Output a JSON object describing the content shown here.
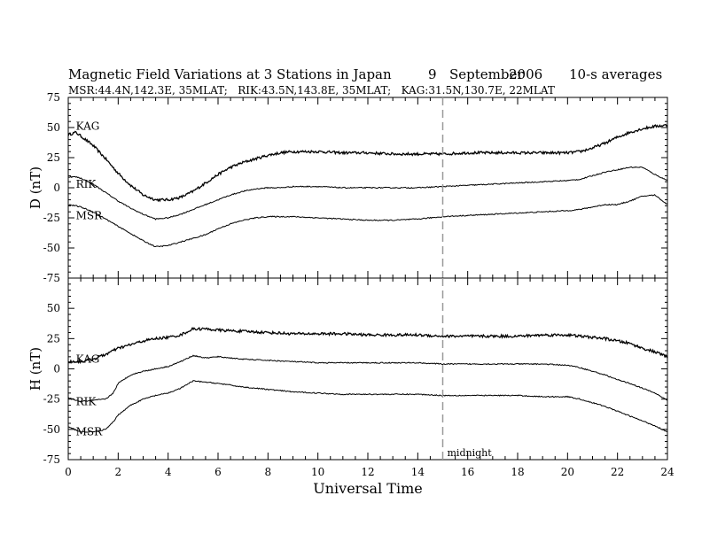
{
  "header": {
    "title": "Magnetic Field Variations at 3 Stations in Japan",
    "day": "9",
    "month": "September",
    "year": "2006",
    "avg": "10-s averages",
    "stations": "MSR:44.4N,142.3E, 35MLAT;   RIK:43.5N,143.8E, 35MLAT;   KAG:31.5N,130.7E, 22MLAT"
  },
  "chart_data": [
    {
      "type": "line",
      "ylabel": "D (nT)",
      "xlim": [
        0,
        24
      ],
      "ylim": [
        -75,
        75
      ],
      "yticks": [
        75,
        50,
        25,
        0,
        -25,
        -50,
        -75
      ],
      "series": [
        {
          "name": "KAG",
          "x": [
            0,
            0.3,
            0.5,
            1,
            1.5,
            2,
            2.5,
            3,
            3.5,
            4,
            4.5,
            5,
            5.5,
            6,
            6.5,
            7,
            7.5,
            8,
            8.5,
            9,
            10,
            11,
            12,
            13,
            14,
            15,
            16,
            17,
            18,
            19,
            20,
            20.5,
            21,
            21.5,
            22,
            22.5,
            23,
            23.5,
            24
          ],
          "y": [
            44,
            46,
            43,
            35,
            24,
            12,
            2,
            -6,
            -10,
            -10,
            -8,
            -3,
            4,
            11,
            17,
            21,
            24,
            27,
            29,
            30,
            30,
            29,
            29,
            28,
            28,
            28,
            29,
            29,
            29,
            29,
            29,
            30,
            33,
            37,
            42,
            46,
            49,
            51,
            52
          ]
        },
        {
          "name": "RIK",
          "x": [
            0,
            0.3,
            0.5,
            1,
            1.5,
            2,
            2.5,
            3,
            3.5,
            4,
            4.5,
            5,
            5.5,
            6,
            6.5,
            7,
            7.5,
            8,
            8.5,
            9,
            10,
            11,
            12,
            13,
            14,
            15,
            16,
            17,
            18,
            19,
            20,
            20.5,
            21,
            21.5,
            22,
            22.5,
            23,
            23.5,
            24
          ],
          "y": [
            9,
            9,
            8,
            3,
            -4,
            -11,
            -17,
            -22,
            -26,
            -25,
            -22,
            -18,
            -14,
            -10,
            -6,
            -3,
            -1,
            0,
            0,
            1,
            1,
            0,
            0,
            0,
            0,
            1,
            2,
            3,
            4,
            5,
            6,
            7,
            10,
            13,
            15,
            17,
            17,
            11,
            6
          ]
        },
        {
          "name": "MSR",
          "x": [
            0,
            0.3,
            0.5,
            1,
            1.5,
            2,
            2.5,
            3,
            3.5,
            4,
            4.5,
            5,
            5.5,
            6,
            6.5,
            7,
            7.5,
            8,
            8.5,
            9,
            10,
            11,
            12,
            13,
            14,
            15,
            16,
            17,
            18,
            19,
            20,
            20.5,
            21,
            21.5,
            22,
            22.5,
            23,
            23.5,
            24
          ],
          "y": [
            -14,
            -15,
            -16,
            -20,
            -26,
            -32,
            -38,
            -44,
            -49,
            -48,
            -45,
            -42,
            -39,
            -34,
            -30,
            -27,
            -25,
            -24,
            -24,
            -24,
            -25,
            -26,
            -27,
            -27,
            -26,
            -24,
            -23,
            -22,
            -21,
            -20,
            -19,
            -18,
            -16,
            -14,
            -14,
            -11,
            -7,
            -6,
            -14
          ]
        }
      ],
      "labels": [
        {
          "text": "KAG",
          "x": 0.2,
          "y": 51
        },
        {
          "text": "RIK",
          "x": 0.2,
          "y": 3
        },
        {
          "text": "MSR",
          "x": 0.2,
          "y": -23
        }
      ]
    },
    {
      "type": "line",
      "ylabel": "H (nT)",
      "xlabel": "Universal Time",
      "xlim": [
        0,
        24
      ],
      "ylim": [
        -75,
        75
      ],
      "xticks": [
        0,
        2,
        4,
        6,
        8,
        10,
        12,
        14,
        16,
        18,
        20,
        22,
        24
      ],
      "yticks": [
        75,
        50,
        25,
        0,
        -25,
        -50,
        -75
      ],
      "series": [
        {
          "name": "KAG",
          "x": [
            0,
            0.5,
            1,
            1.5,
            2,
            2.5,
            3,
            3.5,
            4,
            4.5,
            5,
            5.5,
            6,
            7,
            8,
            9,
            10,
            11,
            12,
            13,
            14,
            15,
            16,
            17,
            18,
            19,
            20,
            20.5,
            21,
            21.5,
            22,
            22.5,
            23,
            23.5,
            24
          ],
          "y": [
            6,
            6,
            8,
            12,
            17,
            20,
            23,
            25,
            26,
            28,
            33,
            33,
            32,
            31,
            30,
            29,
            29,
            29,
            28,
            28,
            28,
            27,
            27,
            27,
            27,
            28,
            28,
            27,
            26,
            25,
            23,
            21,
            17,
            14,
            10
          ]
        },
        {
          "name": "RIK",
          "x": [
            0,
            0.5,
            1,
            1.5,
            1.8,
            2,
            2.5,
            3,
            3.5,
            4,
            4.5,
            5,
            5.5,
            6,
            7,
            8,
            9,
            10,
            11,
            12,
            13,
            14,
            15,
            16,
            17,
            18,
            19,
            20,
            20.5,
            21,
            21.5,
            22,
            22.5,
            23,
            23.5,
            24
          ],
          "y": [
            -24,
            -27,
            -26,
            -25,
            -20,
            -12,
            -5,
            -2,
            0,
            2,
            6,
            11,
            9,
            10,
            8,
            7,
            6,
            5,
            5,
            5,
            5,
            5,
            4,
            4,
            4,
            4,
            4,
            3,
            1,
            -2,
            -5,
            -9,
            -12,
            -16,
            -20,
            -26
          ]
        },
        {
          "name": "MSR",
          "x": [
            0,
            0.5,
            1,
            1.5,
            1.8,
            2,
            2.5,
            3,
            3.5,
            4,
            4.5,
            5,
            5.5,
            6,
            7,
            8,
            9,
            10,
            11,
            12,
            13,
            14,
            15,
            16,
            17,
            18,
            19,
            20,
            20.5,
            21,
            21.5,
            22,
            22.5,
            23,
            23.5,
            24
          ],
          "y": [
            -48,
            -52,
            -52,
            -50,
            -44,
            -38,
            -30,
            -25,
            -22,
            -20,
            -16,
            -10,
            -11,
            -12,
            -15,
            -17,
            -19,
            -20,
            -21,
            -21,
            -21,
            -21,
            -22,
            -22,
            -22,
            -22,
            -23,
            -23,
            -25,
            -28,
            -31,
            -35,
            -39,
            -43,
            -47,
            -52
          ]
        }
      ],
      "labels": [
        {
          "text": "KAG",
          "x": 0.2,
          "y": 8
        },
        {
          "text": "RIK",
          "x": 0.2,
          "y": -27
        },
        {
          "text": "MSR",
          "x": 0.2,
          "y": -52
        }
      ]
    }
  ],
  "marker": {
    "x": 15,
    "label": "midnight",
    "color": "#999999"
  }
}
